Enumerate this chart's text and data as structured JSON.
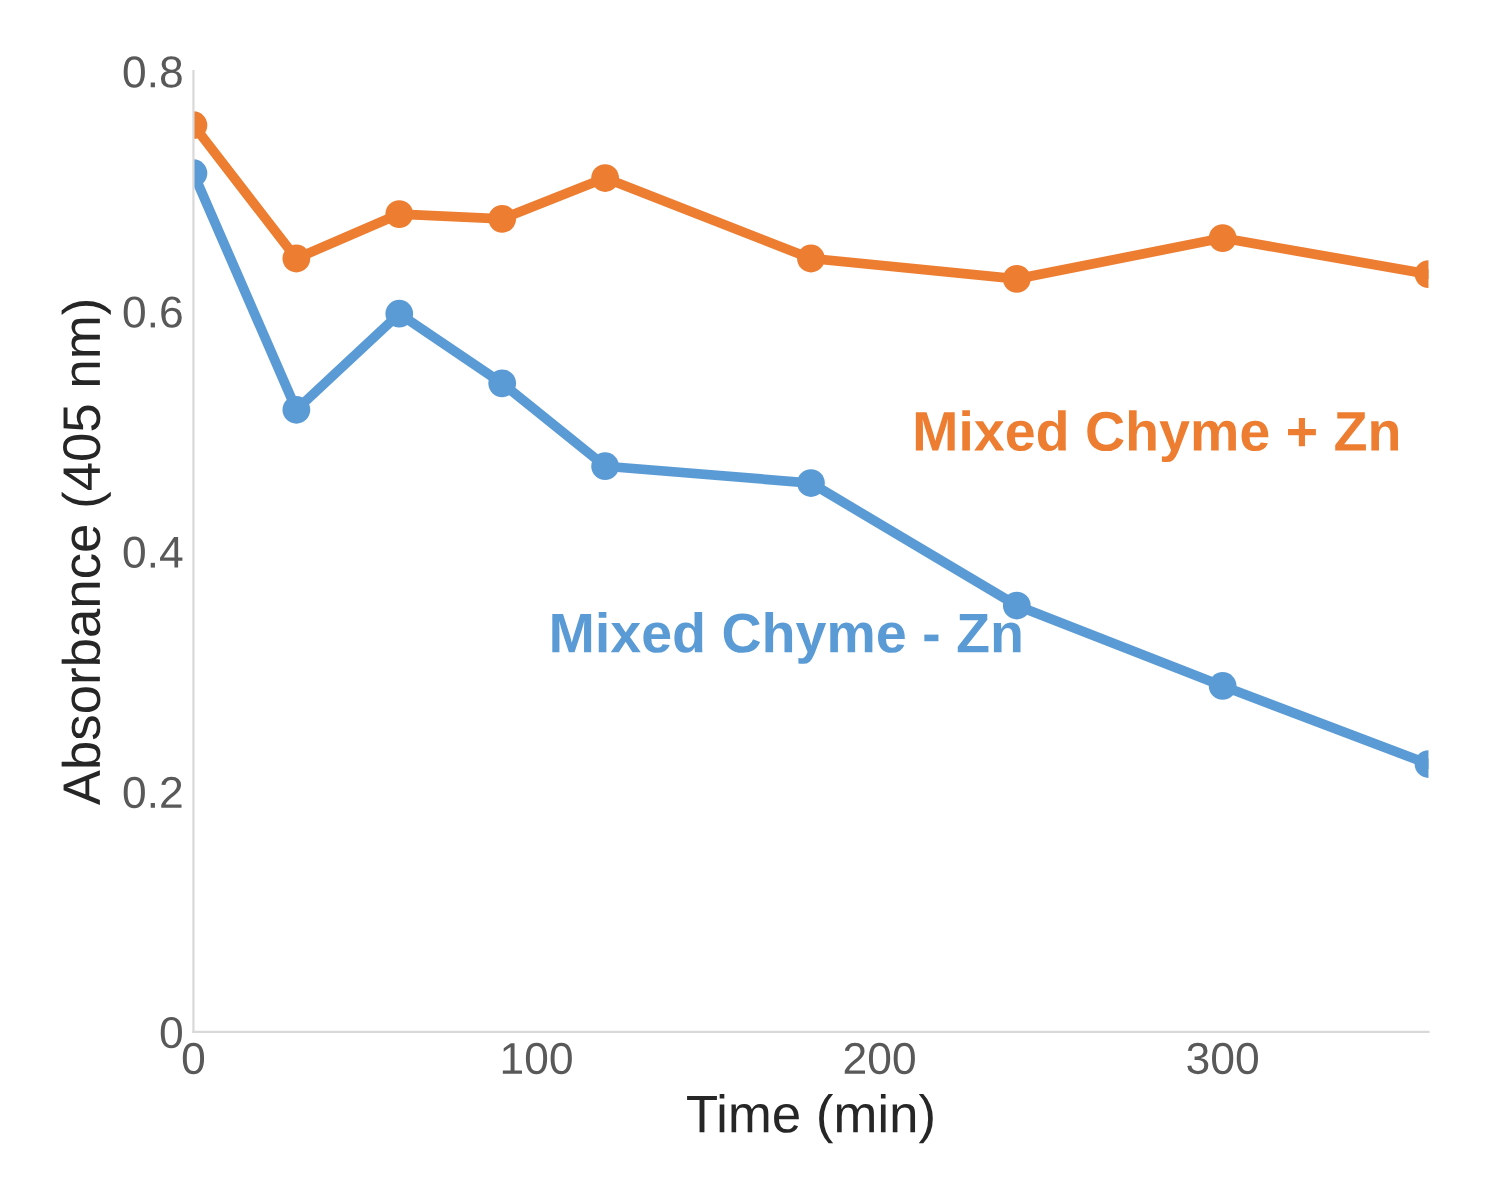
{
  "chart_data": {
    "type": "line",
    "xlabel": "Time (min)",
    "ylabel": "Absorbance (405 nm)",
    "x": [
      0,
      30,
      60,
      90,
      120,
      180,
      240,
      300,
      360
    ],
    "series": [
      {
        "name": "Mixed Chyme + Zn",
        "color": "#ed7d31",
        "values": [
          0.755,
          0.644,
          0.681,
          0.677,
          0.711,
          0.644,
          0.627,
          0.661,
          0.631
        ]
      },
      {
        "name": "Mixed Chyme - Zn",
        "color": "#5b9bd5",
        "values": [
          0.715,
          0.518,
          0.598,
          0.54,
          0.471,
          0.457,
          0.355,
          0.288,
          0.223
        ]
      }
    ],
    "xlim": [
      0,
      360
    ],
    "ylim": [
      0,
      0.8
    ],
    "xticks": [
      0,
      100,
      200,
      300
    ],
    "yticks": [
      0,
      0.2,
      0.4,
      0.6,
      0.8
    ],
    "grid": false,
    "marker": "circle",
    "line_style": "solid",
    "legend": false
  }
}
